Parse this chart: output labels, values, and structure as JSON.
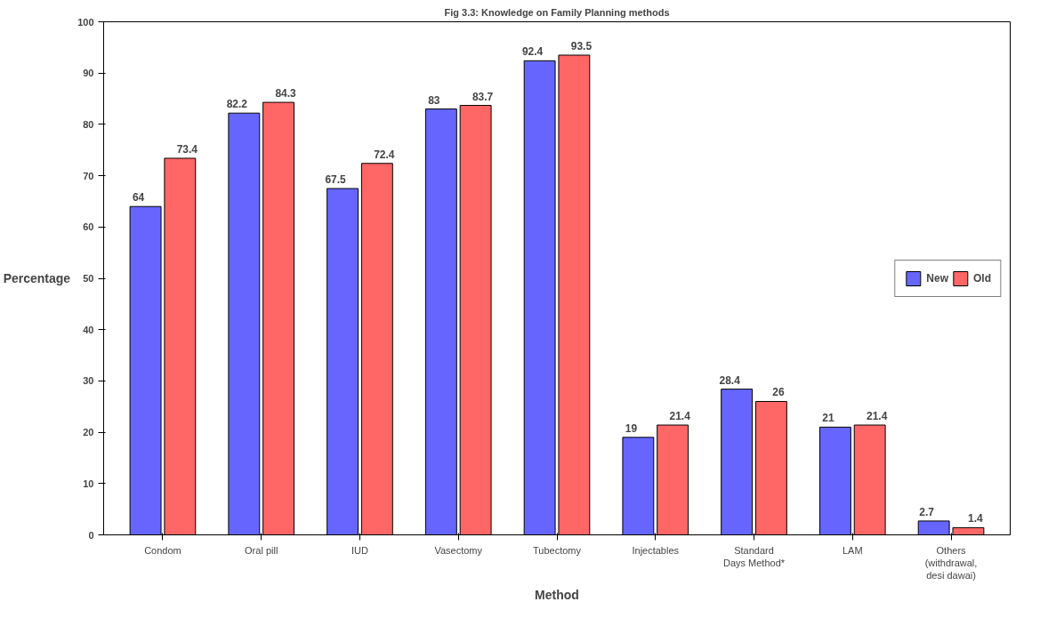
{
  "chart_data": {
    "type": "bar",
    "title": "Fig 3.3: Knowledge on Family Planning methods",
    "xlabel": "Method",
    "ylabel": "Percentage",
    "categories": [
      "Condom",
      "Oral pill",
      "IUD",
      "Vasectomy",
      "Tubectomy",
      "Injectables",
      "Standard Days Method*",
      "LAM",
      "Others (withdrawal, desi dawai)"
    ],
    "series": [
      {
        "name": "New",
        "color": "#6666ff",
        "values": [
          64,
          82.2,
          67.5,
          83,
          92.4,
          19,
          28.4,
          21,
          2.7
        ]
      },
      {
        "name": "Old",
        "color": "#ff6666",
        "values": [
          73.4,
          84.3,
          72.4,
          83.7,
          93.5,
          21.4,
          26,
          21.4,
          1.4
        ]
      }
    ],
    "ylim": [
      0,
      100
    ],
    "yticks": [
      0,
      10,
      20,
      30,
      40,
      50,
      60,
      70,
      80,
      90,
      100
    ],
    "grid": false,
    "legend": "right",
    "data_labels": true
  }
}
